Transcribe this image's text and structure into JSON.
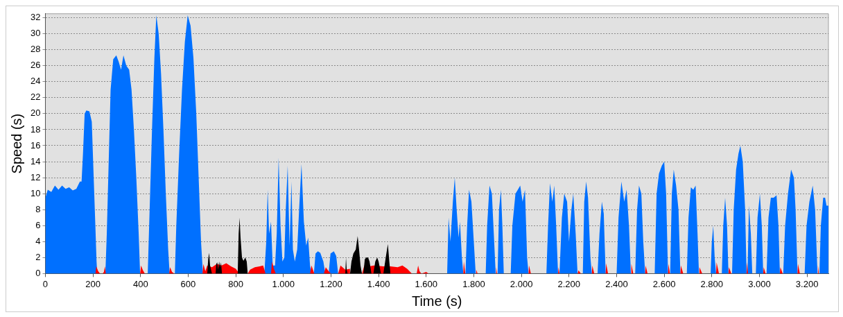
{
  "chart_data": {
    "type": "area",
    "xlabel": "Time (s)",
    "ylabel": "Speed (s)",
    "xlim": [
      0,
      3290
    ],
    "ylim": [
      0,
      32.5
    ],
    "xticks": [
      0,
      200,
      400,
      600,
      800,
      {
        "value": 1000,
        "label": "1.000"
      },
      {
        "value": 1200,
        "label": "1.200"
      },
      {
        "value": 1400,
        "label": "1.400"
      },
      {
        "value": 1600,
        "label": "1.600"
      },
      {
        "value": 1800,
        "label": "1.800"
      },
      {
        "value": 2000,
        "label": "2.000"
      },
      {
        "value": 2200,
        "label": "2.200"
      },
      {
        "value": 2400,
        "label": "2.400"
      },
      {
        "value": 2600,
        "label": "2.600"
      },
      {
        "value": 2800,
        "label": "2.800"
      },
      {
        "value": 3000,
        "label": "3.000"
      },
      {
        "value": 3200,
        "label": "3.200"
      }
    ],
    "yticks": [
      0,
      2,
      4,
      6,
      8,
      10,
      12,
      14,
      16,
      18,
      20,
      22,
      24,
      26,
      28,
      30,
      32
    ],
    "grid": "y",
    "legend": false,
    "marker": "none",
    "line_style": "solid",
    "series": [
      {
        "color": "#0070ff",
        "x": [
          0,
          10,
          25,
          40,
          55,
          70,
          85,
          100,
          115,
          130,
          145,
          152,
          158,
          165,
          172,
          185,
          195,
          203,
          210,
          215,
          218,
          252,
          258,
          266,
          274,
          285,
          298,
          308,
          318,
          328,
          340,
          352,
          362,
          372,
          382,
          392,
          398,
          430,
          438,
          448,
          458,
          466,
          476,
          486,
          496,
          506,
          516,
          522,
          544,
          550,
          562,
          574,
          586,
          598,
          610,
          622,
          634,
          644,
          654,
          662,
          920,
          928,
          934,
          940,
          948,
          955,
          965,
          972,
          980,
          988,
          996,
          1004,
          1010,
          1018,
          1026,
          1034,
          1040,
          1048,
          1058,
          1066,
          1076,
          1086,
          1096,
          1104,
          1112,
          1118,
          1128,
          1135,
          1145,
          1155,
          1168,
          1176,
          1190,
          1198,
          1212,
          1222,
          1230,
          1688,
          1694,
          1702,
          1712,
          1720,
          1728,
          1736,
          1742,
          1750,
          1756,
          1765,
          1772,
          1780,
          1790,
          1800,
          1808,
          1850,
          1856,
          1866,
          1876,
          1884,
          1892,
          1900,
          1906,
          1914,
          1920,
          1926,
          1955,
          1962,
          1975,
          1985,
          1995,
          2005,
          2015,
          2024,
          2030,
          2105,
          2112,
          2120,
          2130,
          2138,
          2146,
          2154,
          2160,
          2170,
          2180,
          2192,
          2200,
          2210,
          2218,
          2228,
          2236,
          2258,
          2264,
          2272,
          2280,
          2290,
          2296,
          2320,
          2328,
          2338,
          2346,
          2354,
          2400,
          2408,
          2420,
          2432,
          2442,
          2452,
          2460,
          2478,
          2486,
          2494,
          2504,
          2512,
          2520,
          2560,
          2568,
          2578,
          2590,
          2600,
          2608,
          2616,
          2625,
          2632,
          2640,
          2650,
          2660,
          2668,
          2695,
          2702,
          2712,
          2722,
          2732,
          2740,
          2746,
          2795,
          2800,
          2806,
          2812,
          2818,
          2842,
          2848,
          2856,
          2864,
          2870,
          2885,
          2892,
          2902,
          2912,
          2920,
          2930,
          2940,
          2946,
          2950,
          2956,
          2964,
          2970,
          2985,
          2992,
          3002,
          3010,
          3016,
          3030,
          3038,
          3048,
          3060,
          3072,
          3080,
          3086,
          3100,
          3108,
          3120,
          3133,
          3145,
          3152,
          3160,
          3190,
          3198,
          3210,
          3224,
          3234,
          3244,
          3252,
          3258,
          3268,
          3276,
          3282,
          3290
        ],
        "values": [
          9.5,
          10.5,
          10.2,
          11,
          10.5,
          11,
          10.6,
          10.8,
          10.4,
          10.6,
          11.5,
          11.5,
          15,
          20,
          20.4,
          20.3,
          19,
          12,
          6,
          1.5,
          0,
          0,
          5,
          14,
          23,
          26.8,
          27.3,
          26.5,
          25.5,
          27.3,
          26,
          25.5,
          23,
          18,
          12,
          5,
          0,
          0,
          8,
          18,
          27,
          32.3,
          30,
          25,
          18,
          10,
          3,
          0,
          0,
          6,
          15,
          23,
          29,
          32.3,
          31,
          27,
          20,
          12,
          4,
          0,
          0,
          4,
          10.5,
          5,
          6.5,
          1,
          1,
          5,
          14.5,
          6,
          1.5,
          2,
          8,
          13.5,
          3.5,
          11.5,
          3,
          1.5,
          3,
          8,
          13.7,
          6.5,
          3.5,
          4.5,
          1,
          0,
          0,
          2.5,
          2.8,
          2.6,
          1.5,
          0,
          0,
          2.5,
          2.8,
          2.2,
          0,
          0,
          7,
          4,
          9,
          12,
          8,
          4.5,
          6.5,
          2,
          0,
          0,
          6,
          10.5,
          9,
          4,
          0,
          0,
          6,
          11,
          10,
          5,
          0,
          0,
          8,
          10.5,
          6,
          0,
          0,
          6,
          10,
          10.5,
          11,
          9,
          10.5,
          2,
          0,
          0,
          6,
          11.3,
          9,
          11,
          6,
          0,
          0,
          7,
          10,
          9,
          4,
          8,
          10,
          5,
          0,
          0,
          9,
          11.5,
          9.5,
          2,
          0,
          0,
          5,
          9,
          7.5,
          0,
          0,
          7,
          11.5,
          9,
          10.5,
          6,
          0,
          0,
          8,
          11,
          10,
          4,
          0,
          0,
          10,
          12.5,
          13.5,
          14,
          10,
          0,
          0,
          10,
          13,
          11,
          8,
          0,
          0,
          7,
          10.8,
          10.5,
          11,
          5,
          0,
          0,
          4,
          6,
          2,
          0,
          0,
          6,
          9.5,
          6,
          0,
          0,
          8,
          13,
          15,
          16,
          14,
          8,
          0,
          0,
          8.5,
          5,
          0,
          0,
          7,
          10,
          6,
          0,
          0,
          7,
          9.5,
          9.5,
          9.8,
          6,
          0,
          0,
          6,
          10,
          13,
          12,
          8,
          0,
          0,
          6,
          9,
          11,
          8,
          0,
          0,
          6,
          9.5,
          9.5,
          8.5,
          8.5
        ]
      },
      {
        "color": "#ff0000",
        "x": [
          210,
          214,
          222,
          230,
          240,
          246,
          250,
          254,
          398,
          402,
          410,
          418,
          520,
          524,
          532,
          542,
          660,
          664,
          672,
          680,
          700,
          720,
          740,
          760,
          780,
          800,
          815,
          850,
          860,
          880,
          900,
          915,
          925,
          948,
          952,
          960,
          968,
          1112,
          1118,
          1130,
          1170,
          1178,
          1190,
          1200,
          1230,
          1240,
          1260,
          1280,
          1300,
          1330,
          1340,
          1360,
          1380,
          1420,
          1450,
          1480,
          1500,
          1520,
          1540,
          1560,
          1566,
          1572,
          1580,
          1590,
          1600,
          1610,
          1756,
          1758,
          1764,
          1808,
          1810,
          1816,
          1892,
          1894,
          1898,
          2030,
          2032,
          2040,
          2154,
          2156,
          2160,
          2236,
          2240,
          2250,
          2296,
          2298,
          2306,
          2354,
          2356,
          2364,
          2460,
          2462,
          2470,
          2520,
          2522,
          2530,
          2616,
          2618,
          2624,
          2668,
          2670,
          2680,
          2746,
          2748,
          2760,
          2818,
          2820,
          2830,
          2870,
          2872,
          2882,
          2946,
          2948,
          2952,
          3016,
          3018,
          3026,
          3086,
          3088,
          3098,
          3160,
          3162,
          3170,
          3244,
          3246,
          3250
        ],
        "values": [
          0,
          0.9,
          0.3,
          0,
          0,
          0.2,
          0.9,
          0,
          0,
          1,
          0.4,
          0,
          0,
          0.8,
          0.2,
          0,
          0,
          1.2,
          0.3,
          1,
          0.8,
          1.2,
          1,
          1.3,
          0.9,
          0.6,
          0,
          0,
          0.5,
          0.8,
          0.9,
          1,
          0,
          0,
          1.5,
          0.6,
          0,
          0,
          1,
          0,
          0,
          0.8,
          0.3,
          0,
          0,
          1,
          0.5,
          0.6,
          null,
          0,
          1,
          0.9,
          1,
          0.9,
          0.9,
          0.8,
          1,
          0.6,
          0,
          0,
          1,
          0.3,
          0,
          0.1,
          0.2,
          0,
          0,
          1.5,
          0,
          0,
          0.5,
          0,
          0,
          0.8,
          0,
          0,
          1,
          0,
          0,
          0.8,
          0,
          0,
          0.4,
          0,
          0,
          1,
          0,
          0,
          1.3,
          0,
          0,
          1.2,
          0,
          0,
          1,
          0,
          0,
          1.2,
          0,
          0,
          1,
          0,
          0,
          0.8,
          0,
          0,
          1.4,
          0,
          0,
          0.8,
          0,
          0,
          1.4,
          0,
          0,
          0.8,
          0,
          0,
          0.8,
          0,
          0,
          1.2,
          0,
          0,
          1,
          0
        ]
      },
      {
        "color": "#000000",
        "x": [
          680,
          684,
          688,
          692,
          700,
          715,
          718,
          722,
          726,
          730,
          734,
          738,
          742,
          808,
          812,
          816,
          820,
          826,
          832,
          840,
          846,
          850,
          1260,
          1263,
          1266,
          1270,
          1280,
          1286,
          1294,
          1304,
          1312,
          1318,
          1324,
          1330,
          1336,
          1342,
          1348,
          1356,
          1362,
          1370,
          1378,
          1386,
          1394,
          1400,
          1410,
          1420,
          1430,
          1439,
          1445,
          1450
        ],
        "values": [
          0,
          1.8,
          2.6,
          1,
          0,
          0,
          1.2,
          1.4,
          0.5,
          1.5,
          0.8,
          1.4,
          0,
          0,
          5,
          7,
          4.5,
          2,
          1.6,
          2,
          1.5,
          0,
          0,
          2,
          0.5,
          0,
          0,
          1.5,
          2.5,
          3,
          4.7,
          3,
          1,
          0,
          0,
          1.8,
          2,
          2,
          1.5,
          0,
          0,
          1.5,
          2,
          1.5,
          0,
          0,
          2,
          3.7,
          1.5,
          0
        ]
      }
    ]
  }
}
